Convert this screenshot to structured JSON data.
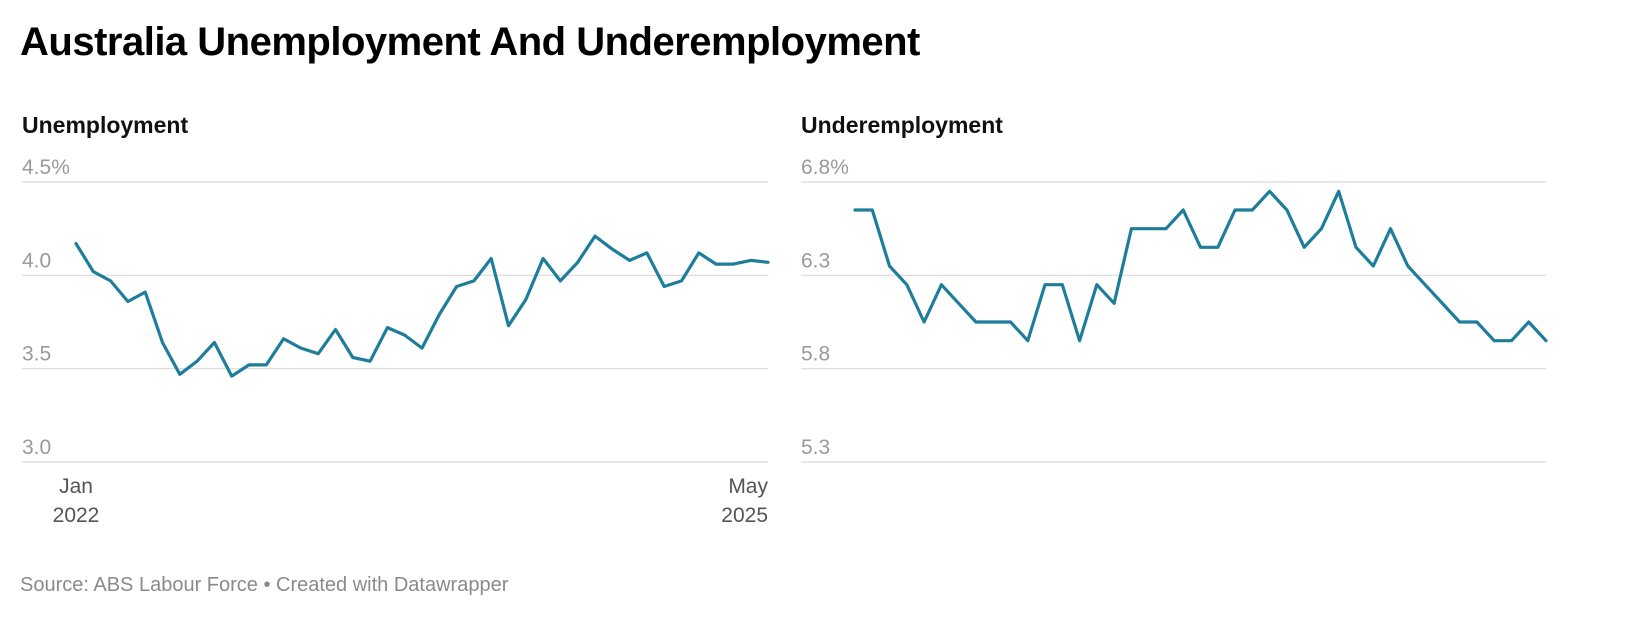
{
  "title": "Australia Unemployment And Underemployment",
  "footer": "Source: ABS Labour Force • Created with Datawrapper",
  "colors": {
    "line": "#1f7d9c",
    "grid": "#d9d9d9",
    "tick": "#9a9a9a",
    "text": "#111111"
  },
  "chart_data": [
    {
      "type": "line",
      "title": "Unemployment",
      "ylim": [
        3.0,
        4.5
      ],
      "y_ticks": [
        "4.5%",
        "4.0",
        "3.5",
        "3.0"
      ],
      "x_ticks": [
        {
          "month": "Jan",
          "year": "2022"
        },
        {
          "month": "May",
          "year": "2025"
        }
      ],
      "grid": true,
      "start": "2022-01",
      "end": "2025-05",
      "values": [
        4.17,
        4.02,
        3.97,
        3.86,
        3.91,
        3.64,
        3.47,
        3.54,
        3.64,
        3.46,
        3.52,
        3.52,
        3.66,
        3.61,
        3.58,
        3.71,
        3.56,
        3.54,
        3.72,
        3.68,
        3.61,
        3.79,
        3.94,
        3.97,
        4.09,
        3.73,
        3.87,
        4.09,
        3.97,
        4.07,
        4.21,
        4.14,
        4.08,
        4.12,
        3.94,
        3.97,
        4.12,
        4.06,
        4.06,
        4.08,
        4.07
      ]
    },
    {
      "type": "line",
      "title": "Underemployment",
      "ylim": [
        5.3,
        6.8
      ],
      "y_ticks": [
        "6.8%",
        "6.3",
        "5.8",
        "5.3"
      ],
      "x_ticks": [],
      "grid": true,
      "start": "2022-01",
      "end": "2025-05",
      "values": [
        6.65,
        6.65,
        6.35,
        6.25,
        6.05,
        6.25,
        6.15,
        6.05,
        6.05,
        6.05,
        5.95,
        6.25,
        6.25,
        5.95,
        6.25,
        6.15,
        6.55,
        6.55,
        6.55,
        6.65,
        6.45,
        6.45,
        6.65,
        6.65,
        6.75,
        6.65,
        6.45,
        6.55,
        6.75,
        6.45,
        6.35,
        6.55,
        6.35,
        6.25,
        6.15,
        6.05,
        6.05,
        5.95,
        5.95,
        6.05,
        5.95
      ]
    }
  ]
}
